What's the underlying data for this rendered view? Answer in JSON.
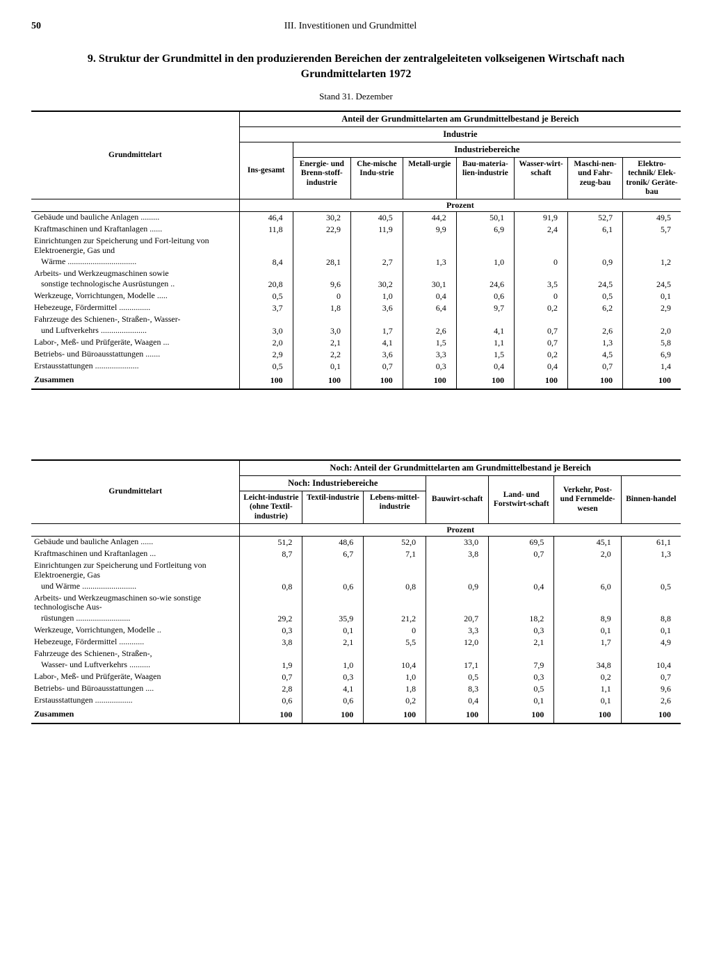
{
  "page_number": "50",
  "section_header": "III. Investitionen und Grundmittel",
  "title": "9. Struktur der Grundmittel in den produzierenden Bereichen der zentralgeleiteten volkseigenen Wirtschaft nach Grundmittelarten 1972",
  "subtitle": "Stand 31. Dezember",
  "label_col": "Grundmittelart",
  "super_header_t1": "Anteil der Grundmittelarten am Grundmittelbestand je Bereich",
  "super_header_t2": "Noch: Anteil der Grundmittelarten am Grundmittelbestand je Bereich",
  "ind_header": "Industrie",
  "ind_sub_header": "Industriebereiche",
  "ind_sub_header2": "Noch: Industriebereiche",
  "unit": "Prozent",
  "zusammen": "Zusammen",
  "t1_cols": [
    "Ins-gesamt",
    "Energie- und Brenn-stoff-industrie",
    "Che-mische Indu-strie",
    "Metall-urgie",
    "Bau-materia-lien-industrie",
    "Wasser-wirt-schaft",
    "Maschi-nen- und Fahr-zeug-bau",
    "Elektro-technik/ Elek-tronik/ Geräte-bau"
  ],
  "t2_cols": [
    "Leicht-industrie (ohne Textil-industrie)",
    "Textil-industrie",
    "Lebens-mittel-industrie",
    "Bauwirt-schaft",
    "Land- und Forstwirt-schaft",
    "Verkehr, Post- und Fernmelde-wesen",
    "Binnen-handel"
  ],
  "rows": [
    {
      "label": "Gebäude und bauliche Anlagen .........",
      "indent": false
    },
    {
      "label": "Kraftmaschinen und Kraftanlagen ......",
      "indent": false
    },
    {
      "label": "Einrichtungen zur Speicherung und Fort-leitung von Elektroenergie, Gas und",
      "indent": false,
      "cont": true
    },
    {
      "label": "Wärme .................................",
      "indent": true
    },
    {
      "label": "Arbeits- und Werkzeugmaschinen sowie",
      "indent": false,
      "cont": true
    },
    {
      "label": "sonstige technologische Ausrüstungen ..",
      "indent": true
    },
    {
      "label": "Werkzeuge, Vorrichtungen, Modelle .....",
      "indent": false
    },
    {
      "label": "Hebezeuge, Fördermittel ...............",
      "indent": false
    },
    {
      "label": "Fahrzeuge des Schienen-, Straßen-, Wasser-",
      "indent": false,
      "cont": true
    },
    {
      "label": "und Luftverkehrs ......................",
      "indent": true
    },
    {
      "label": "Labor-, Meß- und Prüfgeräte, Waagen ...",
      "indent": false
    },
    {
      "label": "Betriebs- und Büroausstattungen .......",
      "indent": false
    },
    {
      "label": "Erstausstattungen .....................",
      "indent": false
    }
  ],
  "rows2": [
    {
      "label": "Gebäude und bauliche Anlagen ......",
      "indent": false
    },
    {
      "label": "Kraftmaschinen und Kraftanlagen ...",
      "indent": false
    },
    {
      "label": "Einrichtungen zur Speicherung und Fortleitung von Elektroenergie, Gas",
      "indent": false,
      "cont": true
    },
    {
      "label": "und Wärme ..........................",
      "indent": true
    },
    {
      "label": "Arbeits- und Werkzeugmaschinen so-wie sonstige technologische Aus-",
      "indent": false,
      "cont": true
    },
    {
      "label": "rüstungen ..........................",
      "indent": true
    },
    {
      "label": "Werkzeuge, Vorrichtungen, Modelle ..",
      "indent": false
    },
    {
      "label": "Hebezeuge, Fördermittel ............",
      "indent": false
    },
    {
      "label": "Fahrzeuge des Schienen-, Straßen-,",
      "indent": false,
      "cont": true
    },
    {
      "label": "Wasser- und Luftverkehrs ..........",
      "indent": true
    },
    {
      "label": "Labor-, Meß- und Prüfgeräte, Waagen",
      "indent": false
    },
    {
      "label": "Betriebs- und Büroausstattungen ....",
      "indent": false
    },
    {
      "label": "Erstausstattungen ..................",
      "indent": false
    }
  ],
  "t1_data": [
    [
      "46,4",
      "30,2",
      "40,5",
      "44,2",
      "50,1",
      "91,9",
      "52,7",
      "49,5"
    ],
    [
      "11,8",
      "22,9",
      "11,9",
      "9,9",
      "6,9",
      "2,4",
      "6,1",
      "5,7"
    ],
    null,
    [
      "8,4",
      "28,1",
      "2,7",
      "1,3",
      "1,0",
      "0",
      "0,9",
      "1,2"
    ],
    null,
    [
      "20,8",
      "9,6",
      "30,2",
      "30,1",
      "24,6",
      "3,5",
      "24,5",
      "24,5"
    ],
    [
      "0,5",
      "0",
      "1,0",
      "0,4",
      "0,6",
      "0",
      "0,5",
      "0,1"
    ],
    [
      "3,7",
      "1,8",
      "3,6",
      "6,4",
      "9,7",
      "0,2",
      "6,2",
      "2,9"
    ],
    null,
    [
      "3,0",
      "3,0",
      "1,7",
      "2,6",
      "4,1",
      "0,7",
      "2,6",
      "2,0"
    ],
    [
      "2,0",
      "2,1",
      "4,1",
      "1,5",
      "1,1",
      "0,7",
      "1,3",
      "5,8"
    ],
    [
      "2,9",
      "2,2",
      "3,6",
      "3,3",
      "1,5",
      "0,2",
      "4,5",
      "6,9"
    ],
    [
      "0,5",
      "0,1",
      "0,7",
      "0,3",
      "0,4",
      "0,4",
      "0,7",
      "1,4"
    ]
  ],
  "t1_total": [
    "100",
    "100",
    "100",
    "100",
    "100",
    "100",
    "100",
    "100"
  ],
  "t2_data": [
    [
      "51,2",
      "48,6",
      "52,0",
      "33,0",
      "69,5",
      "45,1",
      "61,1"
    ],
    [
      "8,7",
      "6,7",
      "7,1",
      "3,8",
      "0,7",
      "2,0",
      "1,3"
    ],
    null,
    [
      "0,8",
      "0,6",
      "0,8",
      "0,9",
      "0,4",
      "6,0",
      "0,5"
    ],
    null,
    [
      "29,2",
      "35,9",
      "21,2",
      "20,7",
      "18,2",
      "8,9",
      "8,8"
    ],
    [
      "0,3",
      "0,1",
      "0",
      "3,3",
      "0,3",
      "0,1",
      "0,1"
    ],
    [
      "3,8",
      "2,1",
      "5,5",
      "12,0",
      "2,1",
      "1,7",
      "4,9"
    ],
    null,
    [
      "1,9",
      "1,0",
      "10,4",
      "17,1",
      "7,9",
      "34,8",
      "10,4"
    ],
    [
      "0,7",
      "0,3",
      "1,0",
      "0,5",
      "0,3",
      "0,2",
      "0,7"
    ],
    [
      "2,8",
      "4,1",
      "1,8",
      "8,3",
      "0,5",
      "1,1",
      "9,6"
    ],
    [
      "0,6",
      "0,6",
      "0,2",
      "0,4",
      "0,1",
      "0,1",
      "2,6"
    ]
  ],
  "t2_total": [
    "100",
    "100",
    "100",
    "100",
    "100",
    "100",
    "100"
  ]
}
